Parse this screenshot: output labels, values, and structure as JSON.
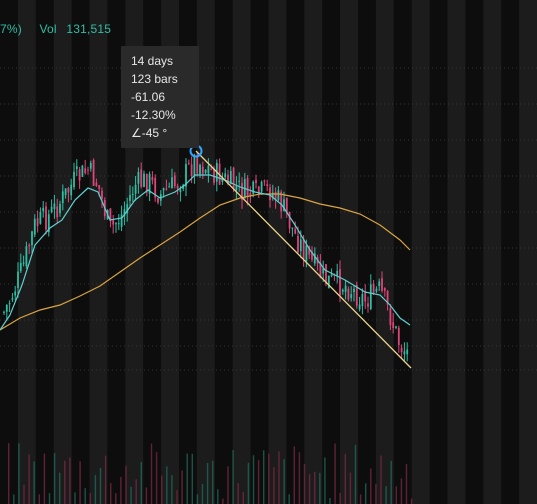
{
  "header": {
    "change_fragment": "7%)",
    "volume_label": "Vol",
    "volume_value": "131,515"
  },
  "measure_tooltip": {
    "duration": "14 days",
    "bars": "123 bars",
    "price_change": "-61.06",
    "percent_change": "-12.30%",
    "angle": "∠-45 °"
  },
  "colors": {
    "background": "#0d0d0d",
    "session_band": "#1c1c1c",
    "up_candle": "#2fbfa4",
    "down_candle": "#e0457a",
    "fast_ma": "#5fd0d0",
    "slow_ma": "#d9a441",
    "trendline": "#e8d38a",
    "anchor_marker": "#2ea6ff",
    "volume_up": "#1f6b5b",
    "volume_down": "#7a2a44",
    "grid": "#333333"
  },
  "chart_data": {
    "type": "candlestick",
    "grid": true,
    "sessions": 30,
    "candles_per_session": 7,
    "price_path": [
      [
        0,
        320
      ],
      [
        10,
        300
      ],
      [
        22,
        270
      ],
      [
        35,
        225
      ],
      [
        50,
        215
      ],
      [
        62,
        200
      ],
      [
        75,
        180
      ],
      [
        88,
        170
      ],
      [
        98,
        185
      ],
      [
        110,
        230
      ],
      [
        122,
        215
      ],
      [
        135,
        185
      ],
      [
        148,
        180
      ],
      [
        160,
        195
      ],
      [
        175,
        185
      ],
      [
        185,
        175
      ],
      [
        195,
        160
      ],
      [
        210,
        170
      ],
      [
        225,
        180
      ],
      [
        240,
        190
      ],
      [
        255,
        195
      ],
      [
        270,
        190
      ],
      [
        282,
        205
      ],
      [
        295,
        235
      ],
      [
        310,
        260
      ],
      [
        325,
        280
      ],
      [
        345,
        285
      ],
      [
        365,
        300
      ],
      [
        380,
        290
      ],
      [
        390,
        315
      ],
      [
        400,
        345
      ],
      [
        410,
        355
      ]
    ],
    "fast_ma_path": [
      [
        0,
        330
      ],
      [
        10,
        315
      ],
      [
        22,
        285
      ],
      [
        35,
        245
      ],
      [
        50,
        228
      ],
      [
        62,
        220
      ],
      [
        75,
        200
      ],
      [
        88,
        188
      ],
      [
        98,
        192
      ],
      [
        110,
        220
      ],
      [
        122,
        218
      ],
      [
        135,
        200
      ],
      [
        148,
        190
      ],
      [
        160,
        198
      ],
      [
        175,
        192
      ],
      [
        185,
        185
      ],
      [
        195,
        175
      ],
      [
        210,
        175
      ],
      [
        225,
        180
      ],
      [
        240,
        187
      ],
      [
        255,
        192
      ],
      [
        270,
        195
      ],
      [
        282,
        205
      ],
      [
        295,
        225
      ],
      [
        310,
        250
      ],
      [
        325,
        270
      ],
      [
        345,
        280
      ],
      [
        365,
        292
      ],
      [
        380,
        295
      ],
      [
        390,
        305
      ],
      [
        400,
        318
      ],
      [
        410,
        325
      ]
    ],
    "slow_ma_path": [
      [
        0,
        330
      ],
      [
        20,
        318
      ],
      [
        40,
        310
      ],
      [
        60,
        305
      ],
      [
        80,
        296
      ],
      [
        100,
        286
      ],
      [
        120,
        272
      ],
      [
        140,
        258
      ],
      [
        160,
        245
      ],
      [
        180,
        232
      ],
      [
        200,
        218
      ],
      [
        220,
        205
      ],
      [
        240,
        198
      ],
      [
        260,
        194
      ],
      [
        280,
        194
      ],
      [
        300,
        198
      ],
      [
        320,
        204
      ],
      [
        340,
        208
      ],
      [
        360,
        214
      ],
      [
        380,
        225
      ],
      [
        400,
        240
      ],
      [
        410,
        250
      ]
    ],
    "trendline": {
      "start": [
        196,
        151
      ],
      "end": [
        411,
        368
      ]
    },
    "volume_baseline_fraction": 1.0,
    "volume_bars": 80
  }
}
